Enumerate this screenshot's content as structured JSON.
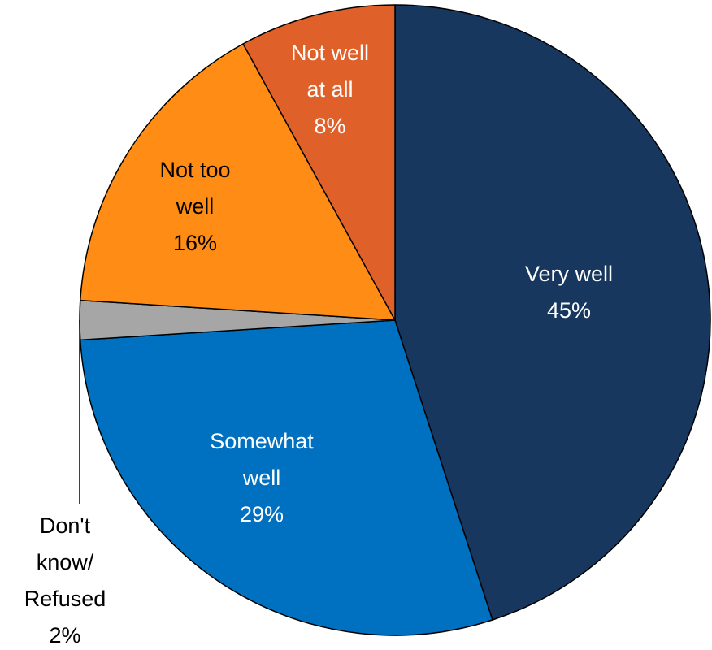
{
  "chart_data": {
    "type": "pie",
    "title": "",
    "slices": [
      {
        "label": [
          "Very well",
          "45%"
        ],
        "value": 45,
        "color": "#17375e",
        "text_color": "#ffffff"
      },
      {
        "label": [
          "Somewhat",
          "well",
          "29%"
        ],
        "value": 29,
        "color": "#0070c0",
        "text_color": "#ffffff"
      },
      {
        "label": [
          "Don't",
          "know/",
          "Refused",
          "2%"
        ],
        "value": 2,
        "color": "#a6a6a6",
        "text_color": "#000000"
      },
      {
        "label": [
          "Not too",
          "well",
          "16%"
        ],
        "value": 16,
        "color": "#ff8c14",
        "text_color": "#000000"
      },
      {
        "label": [
          "Not well",
          "at all",
          "8%"
        ],
        "value": 8,
        "color": "#e0602a",
        "text_color": "#ffffff"
      }
    ]
  }
}
